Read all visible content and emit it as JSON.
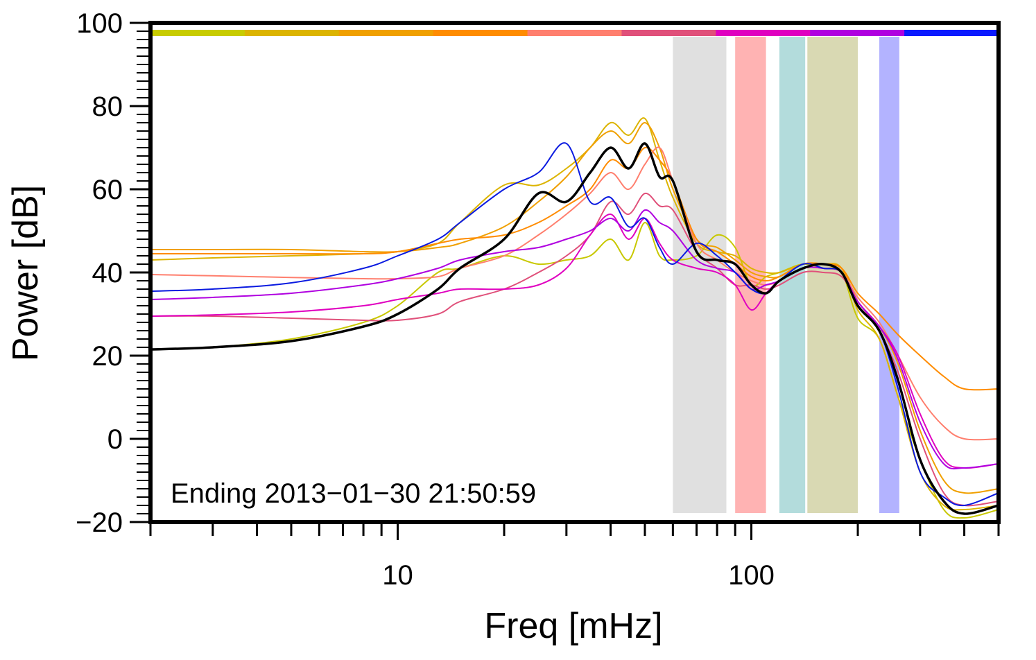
{
  "chart_data": {
    "type": "line",
    "xlabel": "Freq [mHz]",
    "ylabel": "Power [dB]",
    "xscale": "log",
    "xlim": [
      2,
      500
    ],
    "ylim": [
      -20,
      100
    ],
    "xticks_labeled": [
      {
        "value": 10,
        "label": "10"
      },
      {
        "value": 100,
        "label": "100"
      }
    ],
    "xticks_minor": [
      2,
      3,
      4,
      5,
      6,
      7,
      8,
      9,
      20,
      30,
      40,
      50,
      60,
      70,
      80,
      90,
      200,
      300,
      400,
      500
    ],
    "yticks": [
      {
        "value": 100,
        "label": "100"
      },
      {
        "value": 80,
        "label": "80"
      },
      {
        "value": 60,
        "label": "60"
      },
      {
        "value": 40,
        "label": "40"
      },
      {
        "value": 20,
        "label": "20"
      },
      {
        "value": 0,
        "label": "0"
      },
      {
        "value": -20,
        "label": "−20"
      }
    ],
    "annotation": "Ending 2013−01−30 21:50:59",
    "color_bar": [
      "#c8cc00",
      "#dcb400",
      "#f0a000",
      "#ff8c00",
      "#ff7f6e",
      "#e0507a",
      "#e000c0",
      "#b000e0",
      "#0a1aff"
    ],
    "bands": [
      {
        "from": 60,
        "to": 85,
        "color": "#e0e0e0"
      },
      {
        "from": 90,
        "to": 110,
        "color": "#ffb3b3"
      },
      {
        "from": 120,
        "to": 142,
        "color": "#b3dcdc"
      },
      {
        "from": 144,
        "to": 200,
        "color": "#d9d9b3"
      },
      {
        "from": 230,
        "to": 262,
        "color": "#b3b3ff"
      }
    ],
    "series": [
      {
        "name": "yellow-green",
        "color": "#c8c800",
        "width": 2,
        "x": [
          2,
          3,
          5,
          8,
          10,
          13,
          15,
          20,
          25,
          30,
          35,
          40,
          45,
          50,
          55,
          60,
          70,
          80,
          90,
          100,
          110,
          120,
          140,
          160,
          180,
          200,
          230,
          260,
          300,
          350,
          400,
          500
        ],
        "y": [
          21.5,
          22,
          24,
          28,
          32,
          40,
          41,
          44,
          42,
          43,
          44,
          48,
          43,
          52,
          44,
          43,
          44,
          49,
          46,
          37,
          39,
          40,
          42,
          41,
          40,
          29,
          24,
          10,
          -5,
          -17,
          -19,
          -17
        ]
      },
      {
        "name": "gold",
        "color": "#dcb400",
        "width": 2,
        "x": [
          2,
          3,
          5,
          8,
          10,
          13,
          15,
          20,
          25,
          30,
          35,
          40,
          45,
          50,
          55,
          60,
          70,
          80,
          90,
          100,
          110,
          120,
          140,
          160,
          180,
          200,
          230,
          260,
          300,
          350,
          400,
          500
        ],
        "y": [
          43,
          43.5,
          44,
          44.5,
          45,
          47,
          52,
          61,
          61,
          65,
          70,
          76,
          73,
          77,
          67,
          58,
          47,
          45,
          44,
          41,
          40,
          40,
          42,
          42,
          41,
          31,
          24,
          10,
          -8,
          -16,
          -17,
          -16
        ]
      },
      {
        "name": "orange-1",
        "color": "#f0a000",
        "width": 2,
        "x": [
          2,
          3,
          5,
          8,
          10,
          13,
          15,
          20,
          25,
          30,
          35,
          40,
          45,
          50,
          55,
          60,
          70,
          80,
          90,
          100,
          110,
          120,
          140,
          160,
          180,
          200,
          230,
          260,
          300,
          350,
          400,
          500
        ],
        "y": [
          45.5,
          45.5,
          45.5,
          45,
          45,
          46,
          47,
          51,
          57,
          63,
          70,
          74,
          71,
          76,
          70,
          60,
          48,
          46,
          43,
          40,
          39,
          39,
          42,
          42,
          41,
          33,
          27,
          18,
          2,
          -10,
          -13,
          -12
        ]
      },
      {
        "name": "orange-2",
        "color": "#ff8c00",
        "width": 2,
        "x": [
          2,
          3,
          5,
          8,
          10,
          13,
          15,
          20,
          25,
          30,
          35,
          40,
          45,
          50,
          55,
          60,
          70,
          80,
          90,
          100,
          110,
          120,
          140,
          160,
          180,
          200,
          230,
          260,
          300,
          350,
          400,
          500
        ],
        "y": [
          44.5,
          44.5,
          44.5,
          44.5,
          45,
          47,
          48,
          49,
          52,
          56,
          60,
          67,
          65,
          70,
          67,
          62,
          48,
          45,
          42,
          39,
          38,
          39,
          42,
          42,
          41,
          35,
          30,
          25,
          20,
          15,
          12,
          12
        ]
      },
      {
        "name": "salmon",
        "color": "#ff7f6e",
        "width": 2,
        "x": [
          2,
          3,
          5,
          8,
          10,
          13,
          15,
          20,
          25,
          30,
          35,
          40,
          45,
          50,
          55,
          60,
          70,
          80,
          90,
          100,
          110,
          120,
          140,
          160,
          180,
          200,
          230,
          260,
          300,
          350,
          400,
          500
        ],
        "y": [
          39.5,
          39.2,
          38.8,
          38.5,
          38.5,
          39,
          41,
          44,
          49,
          54,
          59,
          64,
          60,
          66,
          70,
          62,
          47,
          43,
          40,
          38,
          37,
          38,
          41,
          41,
          40,
          34,
          28,
          20,
          10,
          3,
          0,
          0
        ]
      },
      {
        "name": "rose",
        "color": "#e0507a",
        "width": 2,
        "x": [
          2,
          3,
          5,
          8,
          10,
          13,
          15,
          20,
          25,
          30,
          35,
          40,
          45,
          50,
          55,
          60,
          70,
          80,
          90,
          100,
          110,
          120,
          140,
          160,
          180,
          200,
          230,
          260,
          300,
          350,
          400,
          500
        ],
        "y": [
          29.5,
          29.5,
          29,
          28.5,
          28.5,
          30,
          33,
          36,
          40,
          44,
          49,
          57,
          54,
          59,
          56,
          55,
          45,
          41,
          37,
          37,
          36,
          37,
          40,
          40,
          39,
          33,
          26,
          16,
          0,
          -13,
          -16,
          -15
        ]
      },
      {
        "name": "magenta",
        "color": "#e000c0",
        "width": 2,
        "x": [
          2,
          3,
          5,
          8,
          10,
          13,
          15,
          20,
          25,
          30,
          35,
          40,
          45,
          50,
          55,
          60,
          70,
          80,
          90,
          100,
          110,
          120,
          140,
          160,
          180,
          200,
          230,
          260,
          300,
          350,
          400,
          500
        ],
        "y": [
          29.5,
          29.8,
          30.5,
          32,
          33.5,
          35,
          36,
          36,
          37,
          41,
          49,
          54,
          48,
          53,
          47,
          43,
          41,
          40,
          37,
          31,
          35,
          38,
          41,
          42,
          40,
          33,
          27,
          20,
          6,
          -5,
          -7,
          -6
        ]
      },
      {
        "name": "violet",
        "color": "#b000e0",
        "width": 2,
        "x": [
          2,
          3,
          5,
          8,
          10,
          13,
          15,
          20,
          25,
          30,
          35,
          40,
          45,
          50,
          55,
          60,
          70,
          80,
          90,
          100,
          110,
          120,
          140,
          160,
          180,
          200,
          230,
          260,
          300,
          350,
          400,
          500
        ],
        "y": [
          33.5,
          34,
          35,
          37,
          38.5,
          41,
          43,
          45,
          46,
          48,
          50,
          53,
          50,
          55,
          52,
          50,
          43,
          41,
          40,
          36,
          37,
          38,
          41,
          41,
          40,
          33,
          27,
          19,
          4,
          -6,
          -7,
          -6
        ]
      },
      {
        "name": "blue",
        "color": "#0a1ae0",
        "width": 2,
        "x": [
          2,
          3,
          5,
          8,
          10,
          13,
          15,
          20,
          25,
          30,
          35,
          40,
          45,
          50,
          55,
          60,
          70,
          80,
          90,
          100,
          110,
          120,
          140,
          160,
          180,
          200,
          230,
          260,
          300,
          350,
          400,
          500
        ],
        "y": [
          35.5,
          36,
          37.5,
          41,
          44,
          48,
          52,
          60,
          64,
          71,
          57,
          58,
          51,
          53,
          46,
          42,
          47,
          44,
          40,
          36,
          35,
          38,
          42,
          41,
          40,
          32,
          26,
          12,
          -8,
          -14,
          -16,
          -13
        ]
      },
      {
        "name": "black",
        "color": "#000000",
        "width": 3.5,
        "x": [
          2,
          3,
          5,
          8,
          10,
          13,
          15,
          20,
          25,
          30,
          35,
          40,
          45,
          50,
          55,
          60,
          70,
          80,
          90,
          100,
          110,
          120,
          140,
          160,
          180,
          200,
          230,
          260,
          300,
          350,
          400,
          500
        ],
        "y": [
          21.5,
          22,
          23.5,
          27,
          30,
          36,
          41,
          48,
          59,
          57,
          64,
          70,
          65,
          71,
          63,
          62,
          45,
          43,
          42,
          37,
          35,
          38,
          41,
          42,
          40,
          32,
          26,
          14,
          -5,
          -15,
          -18,
          -16
        ]
      }
    ]
  }
}
